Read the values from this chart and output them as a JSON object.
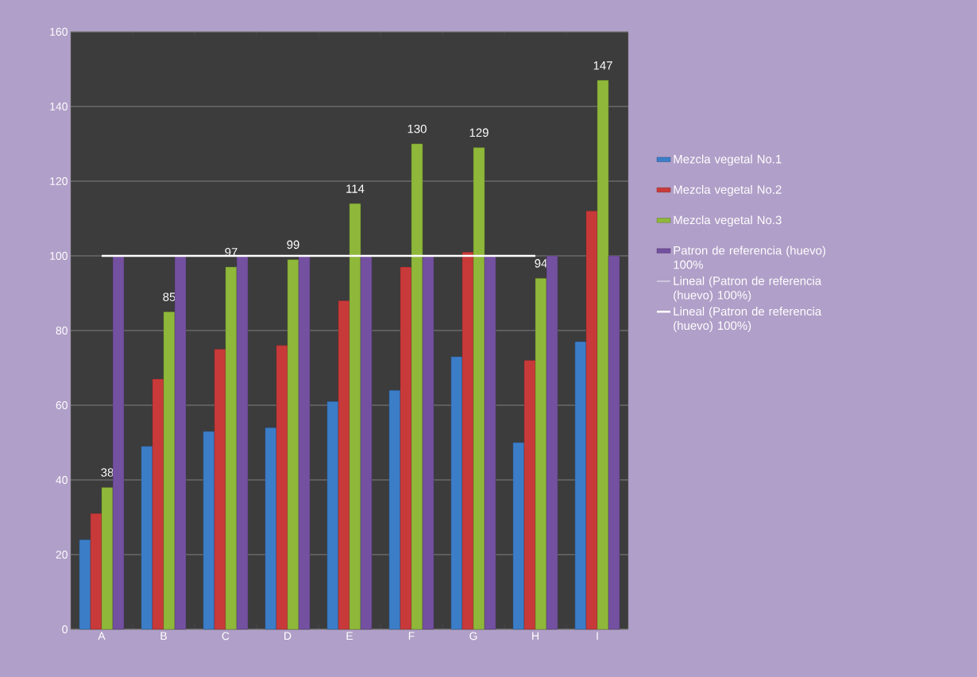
{
  "chart_data": {
    "type": "bar",
    "categories": [
      "A",
      "B",
      "C",
      "D",
      "E",
      "F",
      "G",
      "H",
      "I"
    ],
    "series": [
      {
        "name": "Mezcla vegetal No.1",
        "color": "#3c7dc8",
        "values": [
          24,
          49,
          53,
          54,
          61,
          64,
          73,
          50,
          77
        ]
      },
      {
        "name": "Mezcla vegetal No.2",
        "color": "#c83a3a",
        "values": [
          31,
          67,
          75,
          76,
          88,
          97,
          101,
          72,
          112
        ]
      },
      {
        "name": "Mezcla vegetal No.3",
        "color": "#8fb83a",
        "values": [
          38,
          85,
          97,
          99,
          114,
          130,
          129,
          94,
          147
        ],
        "value_labels": [
          "38",
          "85",
          "97",
          "99",
          "114",
          "130",
          "129",
          "94",
          "147"
        ]
      },
      {
        "name": "Patron de referencia (huevo) 100%",
        "color": "#7451a0",
        "values": [
          100,
          100,
          100,
          100,
          100,
          100,
          100,
          100,
          100
        ]
      },
      {
        "name": "Lineal (Patron de referencia (huevo) 100%)",
        "type": "line",
        "color": "#ffffff",
        "values": [
          null,
          null,
          null,
          null,
          null,
          null,
          null,
          null,
          null
        ]
      },
      {
        "name": "Lineal (Patron de referencia (huevo) 100%)",
        "type": "line",
        "color": "#ffffff",
        "values": [
          100,
          100,
          100,
          100,
          100,
          100,
          100,
          100,
          null
        ]
      }
    ],
    "ylim": [
      0,
      160
    ],
    "yticks": [
      0,
      20,
      40,
      60,
      80,
      100,
      120,
      140,
      160
    ],
    "grid": "y",
    "legend": "right"
  }
}
